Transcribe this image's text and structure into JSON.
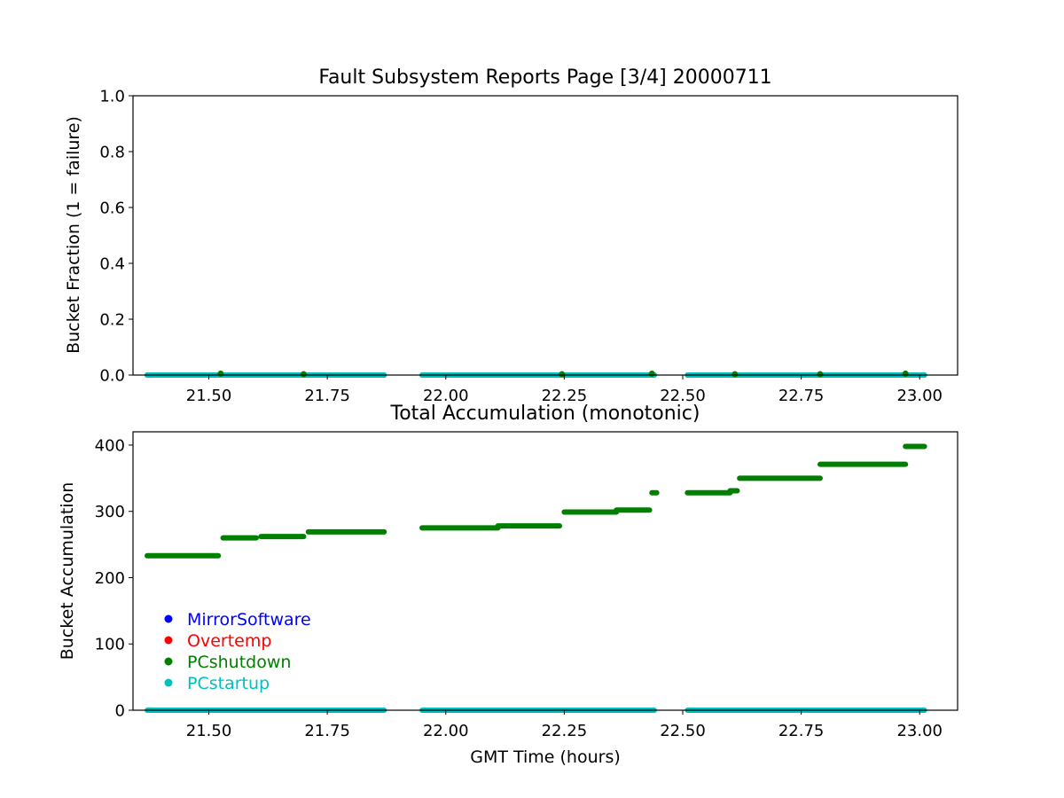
{
  "chart_data": [
    {
      "type": "scatter",
      "title": "Fault Subsystem Reports Page [3/4] 20000711",
      "xlabel": "",
      "ylabel": "Bucket Fraction (1 = failure)",
      "xlim": [
        21.34,
        23.08
      ],
      "ylim": [
        0,
        1
      ],
      "xticks": [
        "21.50",
        "21.75",
        "22.00",
        "22.25",
        "22.50",
        "22.75",
        "23.00"
      ],
      "yticks": [
        "0.0",
        "0.2",
        "0.4",
        "0.6",
        "0.8",
        "1.0"
      ],
      "segments": [
        {
          "series": "PCshutdown",
          "x0": 21.37,
          "x1": 21.87,
          "y": 0
        },
        {
          "series": "PCshutdown",
          "x0": 21.95,
          "x1": 22.44,
          "y": 0
        },
        {
          "series": "PCshutdown",
          "x0": 22.51,
          "x1": 23.01,
          "y": 0
        },
        {
          "series": "PCstartup",
          "x0": 21.37,
          "x1": 21.87,
          "y": 0
        },
        {
          "series": "PCstartup",
          "x0": 21.95,
          "x1": 22.44,
          "y": 0
        },
        {
          "series": "PCstartup",
          "x0": 22.51,
          "x1": 23.01,
          "y": 0
        }
      ],
      "points": [
        {
          "series": "PCshutdown",
          "x": 21.525,
          "y": 0.005
        },
        {
          "series": "PCshutdown",
          "x": 21.7,
          "y": 0.003
        },
        {
          "series": "PCshutdown",
          "x": 22.245,
          "y": 0.003
        },
        {
          "series": "PCshutdown",
          "x": 22.435,
          "y": 0.005
        },
        {
          "series": "PCshutdown",
          "x": 22.61,
          "y": 0.003
        },
        {
          "series": "PCshutdown",
          "x": 22.79,
          "y": 0.003
        },
        {
          "series": "PCshutdown",
          "x": 22.97,
          "y": 0.005
        }
      ],
      "grid": false
    },
    {
      "type": "scatter",
      "title": "Total Accumulation (monotonic)",
      "xlabel": "GMT Time (hours)",
      "ylabel": "Bucket Accumulation",
      "xlim": [
        21.34,
        23.08
      ],
      "ylim": [
        0,
        420
      ],
      "xticks": [
        "21.50",
        "21.75",
        "22.00",
        "22.25",
        "22.50",
        "22.75",
        "23.00"
      ],
      "yticks": [
        "0",
        "100",
        "200",
        "300",
        "400"
      ],
      "legend": {
        "placement": "lower-left",
        "entries": [
          "MirrorSoftware",
          "Overtemp",
          "PCshutdown",
          "PCstartup"
        ]
      },
      "segments": [
        {
          "series": "PCshutdown",
          "x0": 21.37,
          "x1": 21.52,
          "y": 233
        },
        {
          "series": "PCshutdown",
          "x0": 21.53,
          "x1": 21.6,
          "y": 260
        },
        {
          "series": "PCshutdown",
          "x0": 21.61,
          "x1": 21.7,
          "y": 262
        },
        {
          "series": "PCshutdown",
          "x0": 21.71,
          "x1": 21.87,
          "y": 269
        },
        {
          "series": "PCshutdown",
          "x0": 21.95,
          "x1": 22.11,
          "y": 275
        },
        {
          "series": "PCshutdown",
          "x0": 22.11,
          "x1": 22.24,
          "y": 278
        },
        {
          "series": "PCshutdown",
          "x0": 22.25,
          "x1": 22.36,
          "y": 299
        },
        {
          "series": "PCshutdown",
          "x0": 22.36,
          "x1": 22.43,
          "y": 302
        },
        {
          "series": "PCshutdown",
          "x0": 22.435,
          "x1": 22.445,
          "y": 328
        },
        {
          "series": "PCshutdown",
          "x0": 22.51,
          "x1": 22.6,
          "y": 328
        },
        {
          "series": "PCshutdown",
          "x0": 22.6,
          "x1": 22.615,
          "y": 331
        },
        {
          "series": "PCshutdown",
          "x0": 22.62,
          "x1": 22.79,
          "y": 350
        },
        {
          "series": "PCshutdown",
          "x0": 22.79,
          "x1": 22.97,
          "y": 371
        },
        {
          "series": "PCshutdown",
          "x0": 22.97,
          "x1": 23.01,
          "y": 398
        },
        {
          "series": "PCstartup",
          "x0": 21.37,
          "x1": 21.87,
          "y": 0
        },
        {
          "series": "PCstartup",
          "x0": 21.95,
          "x1": 22.44,
          "y": 0
        },
        {
          "series": "PCstartup",
          "x0": 22.51,
          "x1": 23.01,
          "y": 0
        }
      ],
      "points": [],
      "grid": false
    }
  ],
  "series_colors": {
    "MirrorSoftware": "#0000ff",
    "Overtemp": "#ff0000",
    "PCshutdown": "#008000",
    "PCstartup": "#00bfbf"
  }
}
